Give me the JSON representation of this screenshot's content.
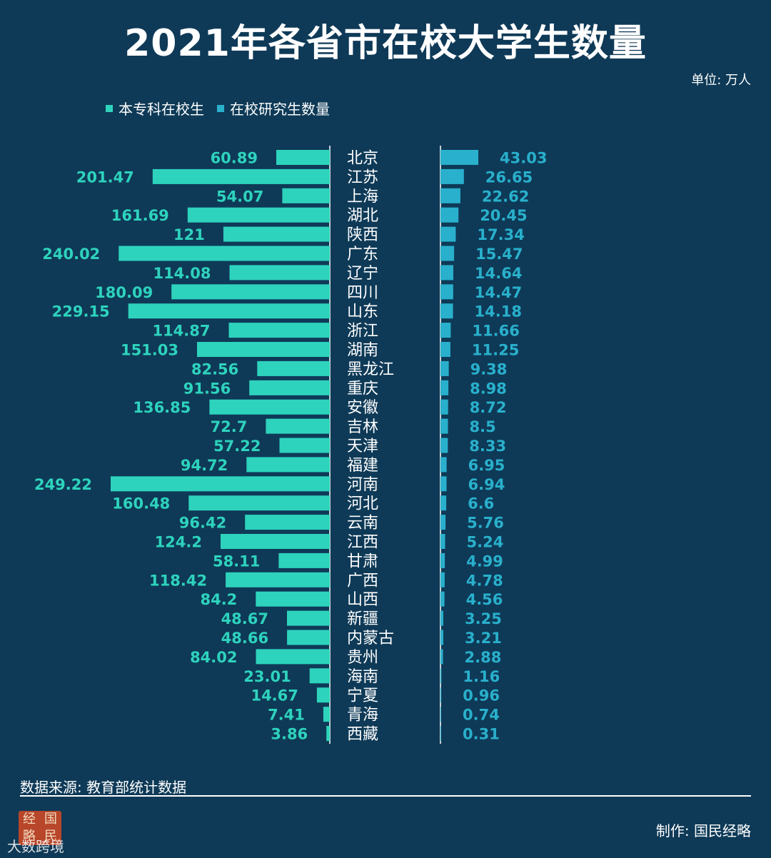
{
  "title": "2021年各省市在校大学生数量",
  "unit": "单位: 万人",
  "legend": {
    "left_label": "本专科在校生",
    "right_label": "在校研究生数量"
  },
  "colors": {
    "background": "#0e3a57",
    "undergrad": "#2ed3bd",
    "graduate": "#29b0cc",
    "white": "#ffffff"
  },
  "chart_data": {
    "type": "bar",
    "categories": [
      "北京",
      "江苏",
      "上海",
      "湖北",
      "陕西",
      "广东",
      "辽宁",
      "四川",
      "山东",
      "浙江",
      "湖南",
      "黑龙江",
      "重庆",
      "安徽",
      "吉林",
      "天津",
      "福建",
      "河南",
      "河北",
      "云南",
      "江西",
      "甘肃",
      "广西",
      "山西",
      "新疆",
      "内蒙古",
      "贵州",
      "海南",
      "宁夏",
      "青海",
      "西藏"
    ],
    "series": [
      {
        "name": "本专科在校生",
        "values": [
          60.89,
          201.47,
          54.07,
          161.69,
          121,
          240.02,
          114.08,
          180.09,
          229.15,
          114.87,
          151.03,
          82.56,
          91.56,
          136.85,
          72.7,
          57.22,
          94.72,
          249.22,
          160.48,
          96.42,
          124.2,
          58.11,
          118.42,
          84.2,
          48.67,
          48.66,
          84.02,
          23.01,
          14.67,
          7.41,
          3.86
        ],
        "labels": [
          "60.89",
          "201.47",
          "54.07",
          "161.69",
          "121",
          "240.02",
          "114.08",
          "180.09",
          "229.15",
          "114.87",
          "151.03",
          "82.56",
          "91.56",
          "136.85",
          "72.7",
          "57.22",
          "94.72",
          "249.22",
          "160.48",
          "96.42",
          "124.2",
          "58.11",
          "118.42",
          "84.2",
          "48.67",
          "48.66",
          "84.02",
          "23.01",
          "14.67",
          "7.41",
          "3.86"
        ]
      },
      {
        "name": "在校研究生数量",
        "values": [
          43.03,
          26.65,
          22.62,
          20.45,
          17.34,
          15.47,
          14.64,
          14.47,
          14.18,
          11.66,
          11.25,
          9.38,
          8.98,
          8.72,
          8.5,
          8.33,
          6.95,
          6.94,
          6.6,
          5.76,
          5.24,
          4.99,
          4.78,
          4.56,
          3.25,
          3.21,
          2.88,
          1.16,
          0.96,
          0.74,
          0.31
        ],
        "labels": [
          "43.03",
          "26.65",
          "22.62",
          "20.45",
          "17.34",
          "15.47",
          "14.64",
          "14.47",
          "14.18",
          "11.66",
          "11.25",
          "9.38",
          "8.98",
          "8.72",
          "8.5",
          "8.33",
          "6.95",
          "6.94",
          "6.6",
          "5.76",
          "5.24",
          "4.99",
          "4.78",
          "4.56",
          "3.25",
          "3.21",
          "2.88",
          "1.16",
          "0.96",
          "0.74",
          "0.31"
        ]
      }
    ],
    "orientation": "horizontal-butterfly",
    "legend_position": "top-left",
    "grid": false
  },
  "footer": {
    "source": "数据来源: 教育部统计数据",
    "maker": "制作: 国民经略",
    "logo_chars": [
      "经",
      "国",
      "略",
      "民"
    ],
    "corner_text": "大数跨境"
  }
}
